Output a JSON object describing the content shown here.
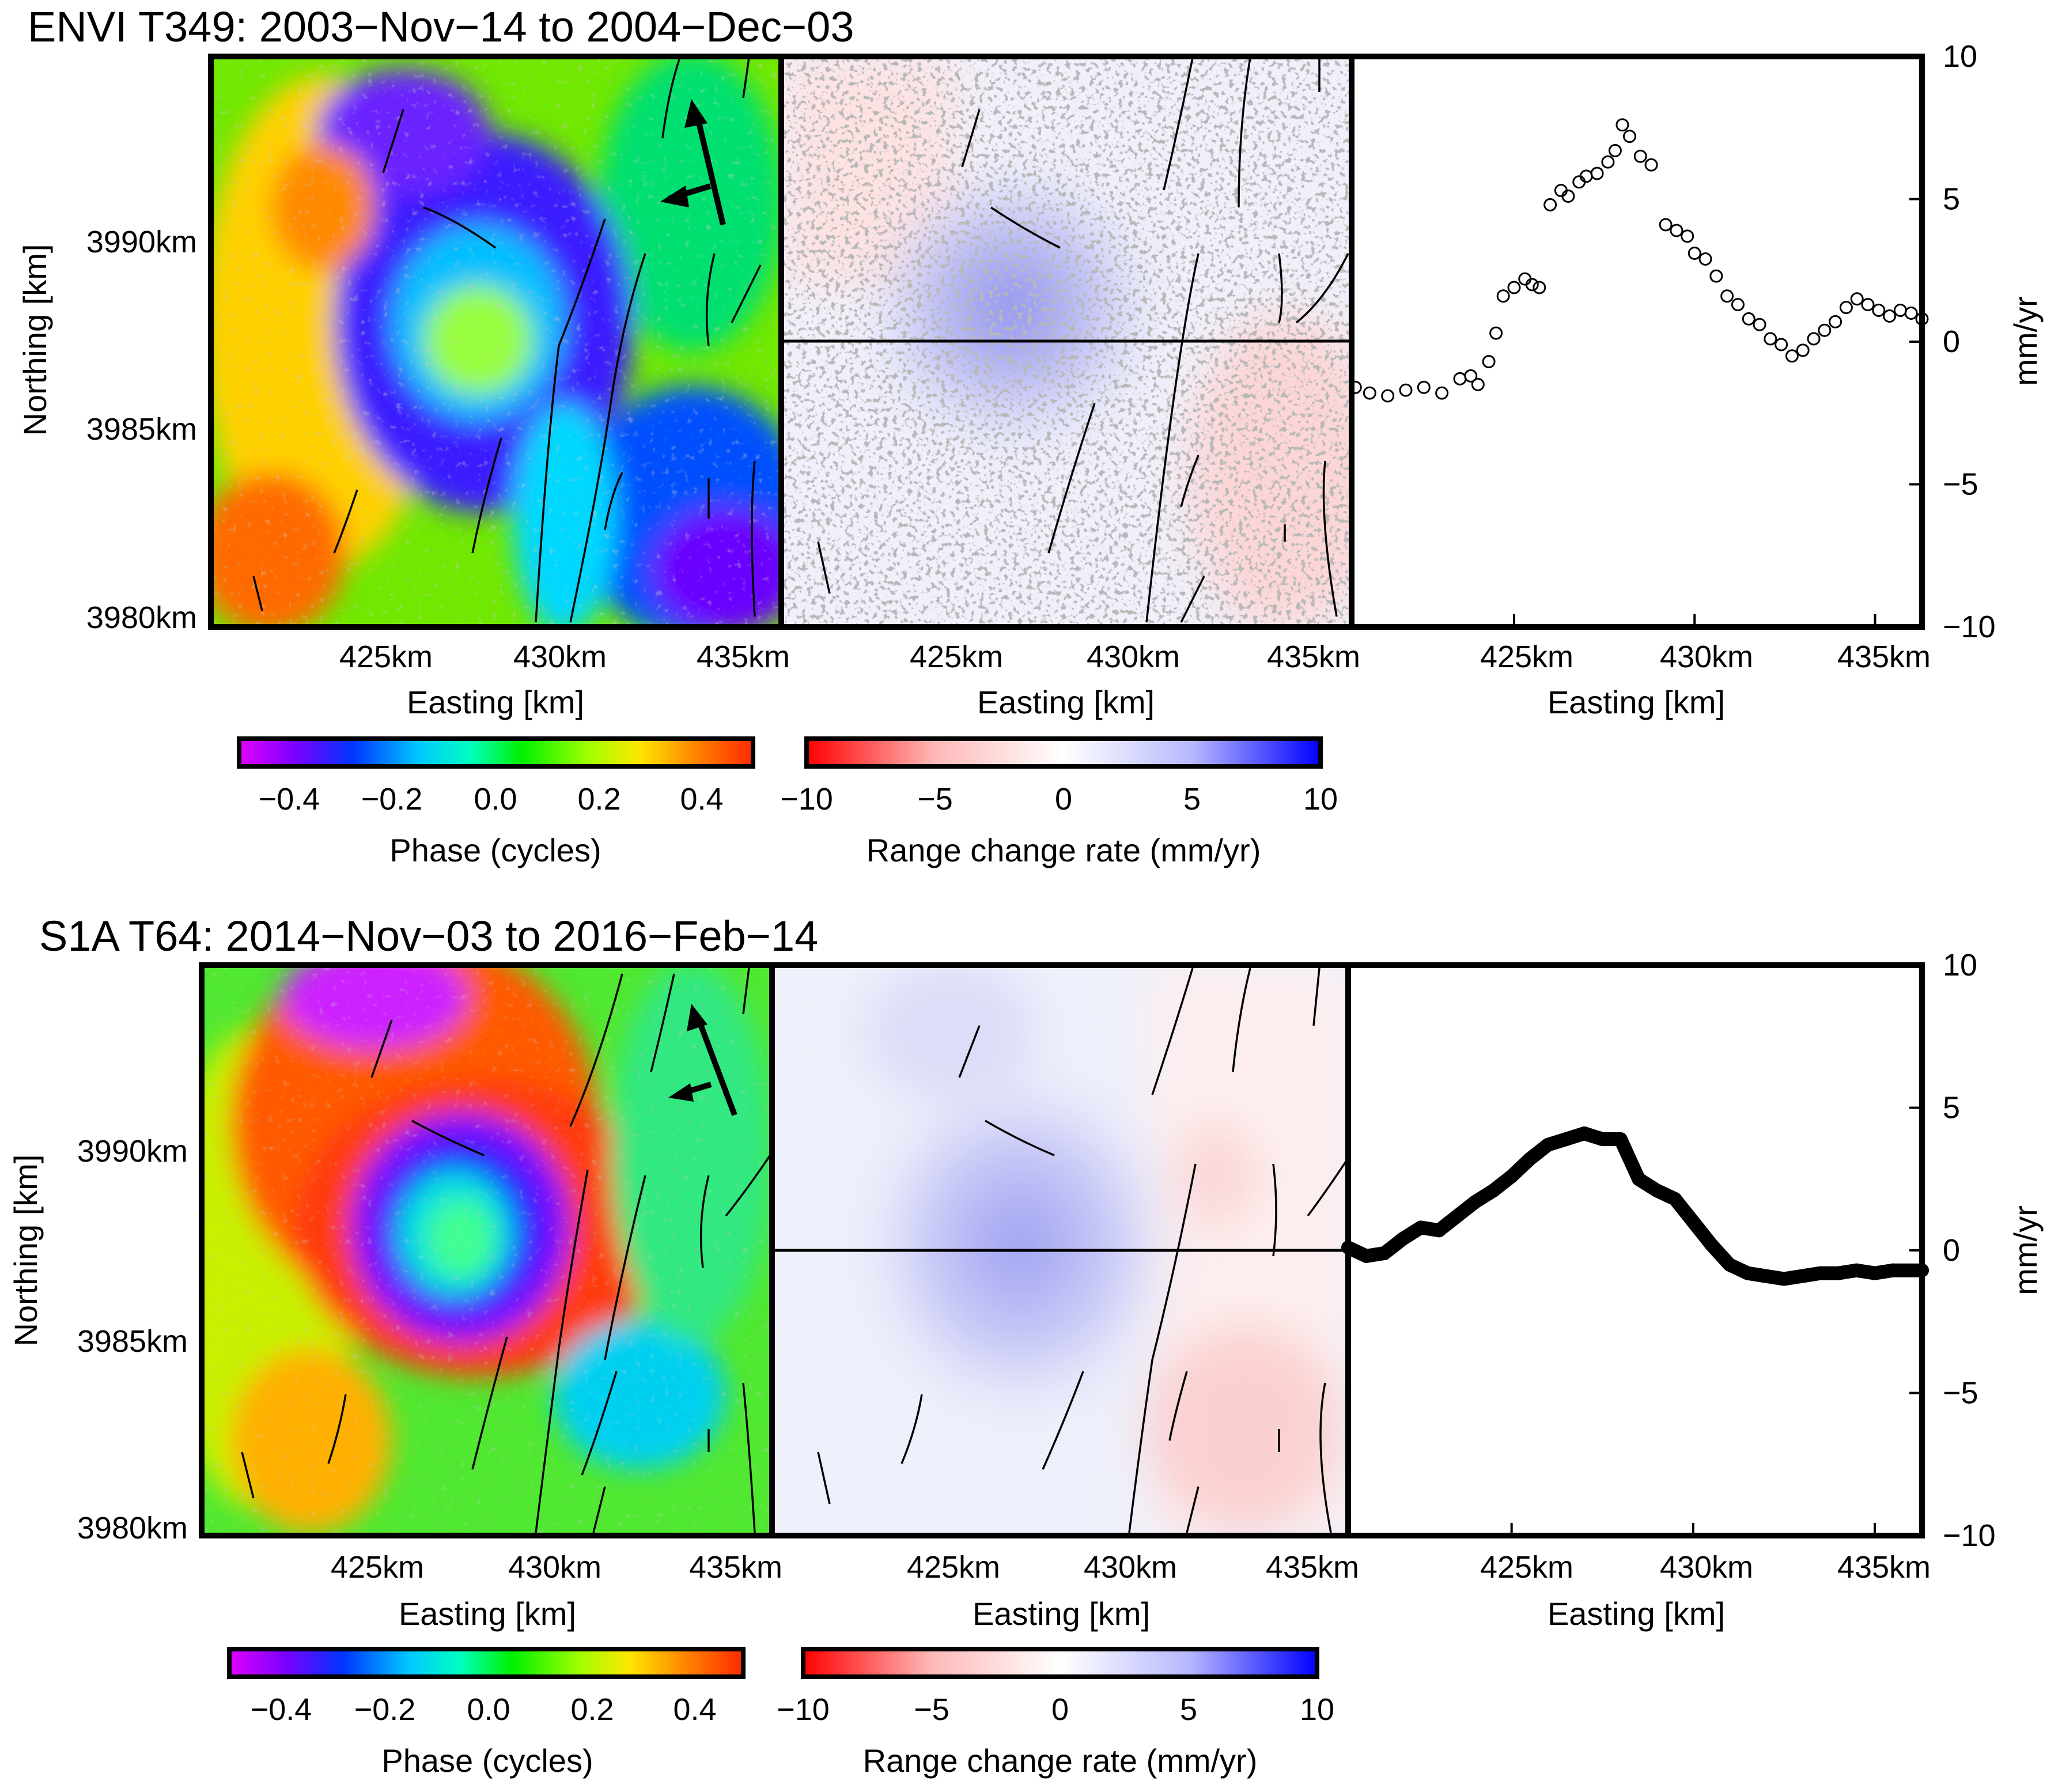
{
  "figure": {
    "title_top": "ENVI T349: 2003−Nov−14 to 2004−Dec−03",
    "title_bottom": "S1A T64: 2014−Nov−03 to 2016−Feb−14",
    "xlabel": "Easting [km]",
    "ylabel": "Northing [km]",
    "right_axis_label": "mm/yr",
    "xticks": [
      "425km",
      "430km",
      "435km"
    ],
    "yticks": [
      "3980km",
      "3985km",
      "3990km"
    ],
    "colors": {
      "phase_scale": [
        "#e000ff",
        "#7a00ff",
        "#0033ff",
        "#00c8ff",
        "#00ffc0",
        "#00f000",
        "#a0ff00",
        "#ffe600",
        "#ff7a00",
        "#ff2a00"
      ],
      "rate_scale": [
        "#ff0000",
        "#ffd2d2",
        "#ffffff",
        "#d0d0ff",
        "#0000ff"
      ],
      "masked": "#7a7a7a",
      "profile_line": "#000000"
    }
  },
  "colorbars": {
    "phase": {
      "label": "Phase (cycles)",
      "ticks": [
        "−0.4",
        "−0.2",
        "0.0",
        "0.2",
        "0.4"
      ],
      "range": [
        -0.5,
        0.5
      ]
    },
    "rate": {
      "label": "Range change rate (mm/yr)",
      "ticks": [
        "−10",
        "−5",
        "0",
        "5",
        "10"
      ],
      "range": [
        -10,
        10
      ]
    }
  },
  "chart_data": [
    {
      "type": "scatter",
      "panel": "ENVI T349 profile",
      "title": "ENVI T349: 2003−Nov−14 to 2004−Dec−03",
      "xlabel": "Easting [km]",
      "ylabel": "mm/yr",
      "xlim": [
        420.5,
        436.3
      ],
      "ylim": [
        -10,
        10
      ],
      "yticks": [
        "−10",
        "−5",
        "0",
        "5",
        "10"
      ],
      "x": [
        420.6,
        421.0,
        421.5,
        422.0,
        422.5,
        423.0,
        423.5,
        423.8,
        424.0,
        424.3,
        424.5,
        424.7,
        425.0,
        425.3,
        425.5,
        425.7,
        426.0,
        426.3,
        426.5,
        426.8,
        427.0,
        427.3,
        427.6,
        427.8,
        428.0,
        428.2,
        428.5,
        428.8,
        429.2,
        429.5,
        429.8,
        430.0,
        430.3,
        430.6,
        430.9,
        431.2,
        431.5,
        431.8,
        432.1,
        432.4,
        432.7,
        433.0,
        433.3,
        433.6,
        433.9,
        434.2,
        434.5,
        434.8,
        435.1,
        435.4,
        435.7,
        436.0,
        436.3
      ],
      "y": [
        -1.6,
        -1.8,
        -1.9,
        -1.7,
        -1.6,
        -1.8,
        -1.3,
        -1.2,
        -1.5,
        -0.7,
        0.3,
        1.6,
        1.9,
        2.2,
        2.0,
        1.9,
        4.8,
        5.3,
        5.1,
        5.6,
        5.8,
        5.9,
        6.3,
        6.7,
        7.6,
        7.2,
        6.5,
        6.2,
        4.1,
        3.9,
        3.7,
        3.1,
        2.9,
        2.3,
        1.6,
        1.3,
        0.8,
        0.6,
        0.1,
        -0.1,
        -0.5,
        -0.3,
        0.1,
        0.4,
        0.7,
        1.2,
        1.5,
        1.3,
        1.1,
        0.9,
        1.1,
        1.0,
        0.8
      ]
    },
    {
      "type": "line",
      "panel": "S1A T64 profile",
      "title": "S1A T64: 2014−Nov−03 to 2016−Feb−14",
      "xlabel": "Easting [km]",
      "ylabel": "mm/yr",
      "xlim": [
        420.5,
        436.3
      ],
      "ylim": [
        -10,
        10
      ],
      "yticks": [
        "−10",
        "−5",
        "0",
        "5",
        "10"
      ],
      "x": [
        420.5,
        421.0,
        421.5,
        422.0,
        422.5,
        423.0,
        423.5,
        424.0,
        424.5,
        425.0,
        425.5,
        426.0,
        426.5,
        427.0,
        427.5,
        428.0,
        428.5,
        429.0,
        429.5,
        430.0,
        430.5,
        431.0,
        431.5,
        432.0,
        432.5,
        433.0,
        433.5,
        434.0,
        434.5,
        435.0,
        435.5,
        436.3
      ],
      "y": [
        0.1,
        -0.2,
        -0.1,
        0.4,
        0.8,
        0.7,
        1.2,
        1.7,
        2.1,
        2.6,
        3.2,
        3.7,
        3.9,
        4.1,
        3.9,
        3.9,
        2.5,
        2.1,
        1.8,
        1.0,
        0.2,
        -0.5,
        -0.8,
        -0.9,
        -1.0,
        -0.9,
        -0.8,
        -0.8,
        -0.7,
        -0.8,
        -0.7,
        -0.7
      ]
    }
  ]
}
